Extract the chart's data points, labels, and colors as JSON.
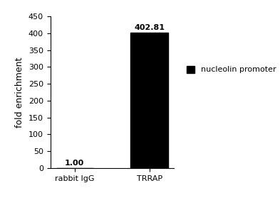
{
  "categories": [
    "rabbit IgG",
    "TRRAP"
  ],
  "values": [
    1.0,
    402.81
  ],
  "bar_color": "#000000",
  "bar_labels": [
    "1.00",
    "402.81"
  ],
  "ylabel": "fold enrichment",
  "ylim": [
    0,
    450
  ],
  "yticks": [
    0.0,
    50.0,
    100.0,
    150.0,
    200.0,
    250.0,
    300.0,
    350.0,
    400.0,
    450.0
  ],
  "legend_label": "nucleolin promoter",
  "legend_color": "#000000",
  "bar_width": 0.5,
  "background_color": "#ffffff",
  "label_fontsize": 8,
  "tick_fontsize": 8,
  "ylabel_fontsize": 9,
  "figsize": [
    3.93,
    2.89
  ],
  "dpi": 100
}
